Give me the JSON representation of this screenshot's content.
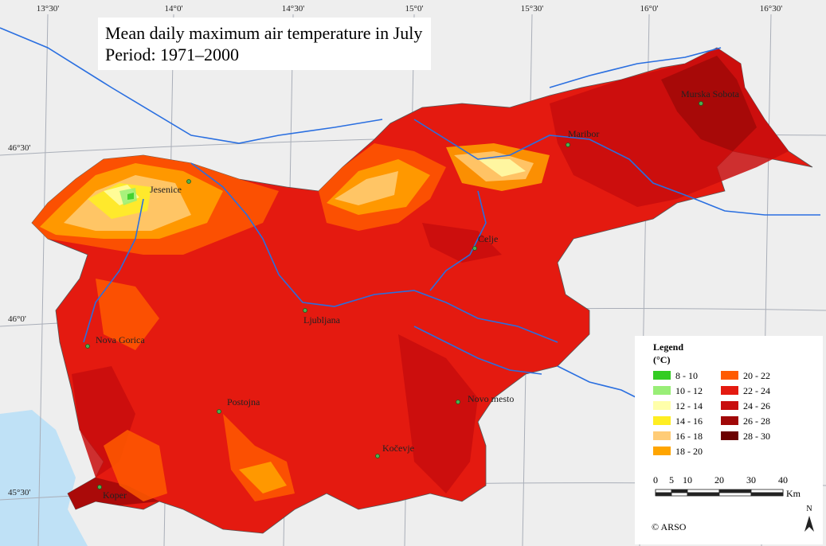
{
  "title": {
    "line1": "Mean daily maximum air temperature in July",
    "line2": "Period: 1971–2000"
  },
  "graticule": {
    "top": [
      "13°30'",
      "14°0'",
      "14°30'",
      "15°0'",
      "15°30'",
      "16°0'",
      "16°30'"
    ],
    "left": [
      "46°30'",
      "46°0'",
      "45°30'"
    ]
  },
  "places": [
    "Murska Sobota",
    "Maribor",
    "Jesenice",
    "Celje",
    "Ljubljana",
    "Nova Gorica",
    "Novo mesto",
    "Postojna",
    "Kočevje",
    "Koper"
  ],
  "legend": {
    "title": "Legend",
    "unit": "(°C)",
    "classes": [
      {
        "label": "8 - 10",
        "color": "#33cc22"
      },
      {
        "label": "10 - 12",
        "color": "#99ee77"
      },
      {
        "label": "12 - 14",
        "color": "#ffffaa"
      },
      {
        "label": "14 - 16",
        "color": "#ffee22"
      },
      {
        "label": "16 - 18",
        "color": "#ffcc77"
      },
      {
        "label": "18 - 20",
        "color": "#ffa500"
      },
      {
        "label": "20 - 22",
        "color": "#ff5a00"
      },
      {
        "label": "22 - 24",
        "color": "#e41a10"
      },
      {
        "label": "24 - 26",
        "color": "#c80d0d"
      },
      {
        "label": "26 - 28",
        "color": "#a00808"
      },
      {
        "label": "28 - 30",
        "color": "#6b0000"
      }
    ]
  },
  "scale": {
    "ticks": [
      0,
      5,
      10,
      20,
      30,
      40
    ],
    "unit": "Km"
  },
  "north": "N",
  "credit": "© ARSO"
}
